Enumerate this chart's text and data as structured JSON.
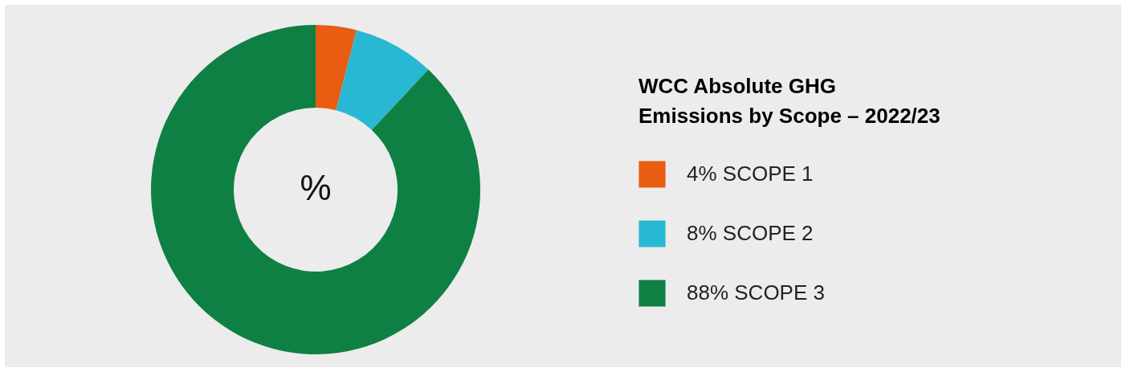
{
  "chart_data": {
    "type": "donut",
    "title": "WCC Absolute GHG Emissions by Scope – 2022/23",
    "categories": [
      "SCOPE 1",
      "SCOPE 2",
      "SCOPE 3"
    ],
    "values": [
      4,
      8,
      88
    ],
    "value_labels": [
      "4%",
      "8%",
      "88%"
    ],
    "colors": [
      "#e85d12",
      "#29b8d4",
      "#0f8043"
    ],
    "annotations": [
      "%"
    ],
    "legend": "right"
  }
}
